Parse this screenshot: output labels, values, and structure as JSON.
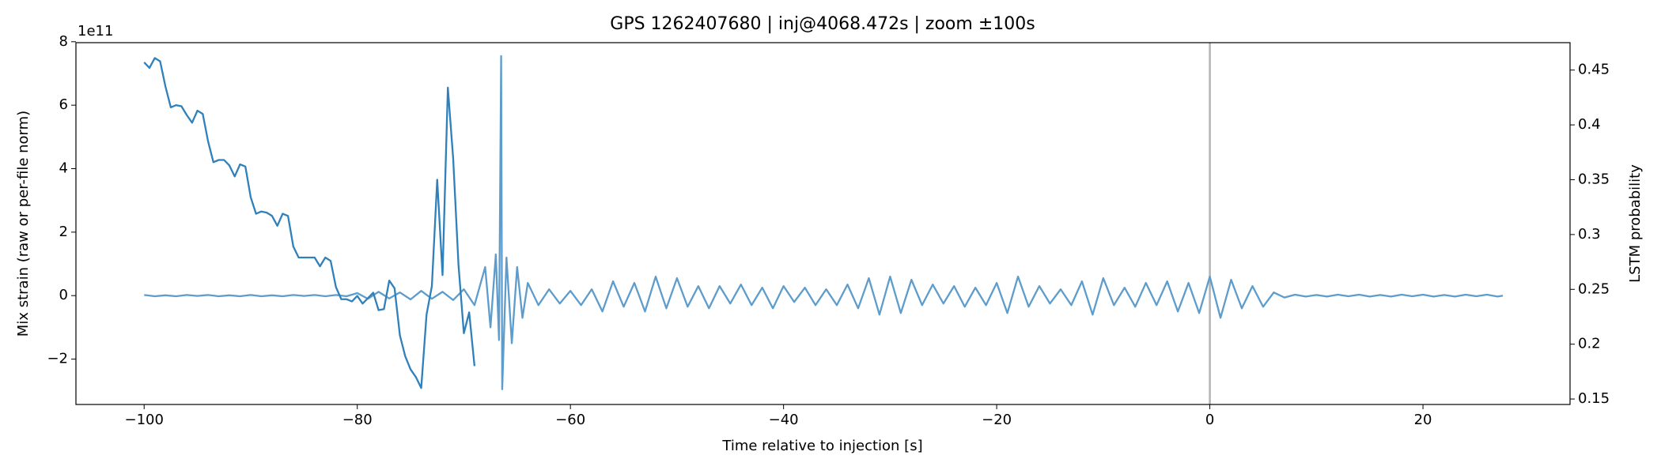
{
  "chart_data": {
    "type": "line",
    "title": "GPS 1262407680 | inj@4068.472s | zoom ±100s",
    "xlabel": "Time relative to injection [s]",
    "ylabel": "Mix strain (raw or per-file norm)",
    "y2label": "LSTM probability",
    "y_offset_label": "1e11",
    "xlim": [
      -106.4,
      33.8
    ],
    "xticks": [
      {
        "value": -100,
        "label": "−100"
      },
      {
        "value": -80,
        "label": "−80"
      },
      {
        "value": -60,
        "label": "−60"
      },
      {
        "value": -40,
        "label": "−40"
      },
      {
        "value": -20,
        "label": "−20"
      },
      0,
      20
    ],
    "ylim": [
      -3.43,
      7.97
    ],
    "yticks": [
      {
        "value": -2,
        "label": "−2"
      },
      0,
      2,
      4,
      6,
      8
    ],
    "y2lim": [
      0.145,
      0.475
    ],
    "y2ticks": [
      0.15,
      0.2,
      0.25,
      0.3,
      0.35,
      0.4,
      0.45
    ],
    "vline_x": 0,
    "vline_color": "#b3b3b3",
    "series": [
      {
        "color": "#5d9ccb",
        "axis": "y",
        "x": [
          -100,
          -99,
          -98,
          -97,
          -96,
          -95,
          -94,
          -93,
          -92,
          -91,
          -90,
          -89,
          -88,
          -87,
          -86,
          -85,
          -84,
          -83,
          -82,
          -81,
          -80,
          -79,
          -78,
          -77,
          -76,
          -75,
          -74,
          -73,
          -72,
          -71,
          -70,
          -69,
          -68,
          -67.5,
          -67,
          -66.7,
          -66.5,
          -66.4,
          -66,
          -65.5,
          -65,
          -64.5,
          -64,
          -63,
          -62,
          -61,
          -60,
          -59,
          -58,
          -57,
          -56,
          -55,
          -54,
          -53,
          -52,
          -51,
          -50,
          -49,
          -48,
          -47,
          -46,
          -45,
          -44,
          -43,
          -42,
          -41,
          -40,
          -39,
          -38,
          -37,
          -36,
          -35,
          -34,
          -33,
          -32,
          -31,
          -30,
          -29,
          -28,
          -27,
          -26,
          -25,
          -24,
          -23,
          -22,
          -21,
          -20,
          -19,
          -18,
          -17,
          -16,
          -15,
          -14,
          -13,
          -12,
          -11,
          -10,
          -9,
          -8,
          -7,
          -6,
          -5,
          -4,
          -3,
          -2,
          -1,
          0,
          1,
          2,
          3,
          4,
          5,
          6,
          7,
          8,
          9,
          10,
          11,
          12,
          13,
          14,
          15,
          16,
          17,
          18,
          19,
          20,
          21,
          22,
          23,
          24,
          25,
          26,
          27,
          27.5
        ],
        "values": [
          0.02,
          -0.02,
          0.01,
          -0.02,
          0.02,
          -0.01,
          0.02,
          -0.02,
          0.01,
          -0.02,
          0.02,
          -0.02,
          0.01,
          -0.02,
          0.02,
          -0.01,
          0.02,
          -0.02,
          0.02,
          -0.02,
          0.08,
          -0.1,
          0.12,
          -0.09,
          0.1,
          -0.12,
          0.15,
          -0.1,
          0.12,
          -0.14,
          0.2,
          -0.3,
          0.9,
          -1.0,
          1.3,
          -1.4,
          7.55,
          -2.95,
          1.2,
          -1.5,
          0.9,
          -0.7,
          0.4,
          -0.3,
          0.2,
          -0.25,
          0.15,
          -0.3,
          0.2,
          -0.5,
          0.45,
          -0.35,
          0.4,
          -0.5,
          0.6,
          -0.4,
          0.55,
          -0.35,
          0.3,
          -0.4,
          0.3,
          -0.25,
          0.35,
          -0.3,
          0.25,
          -0.4,
          0.3,
          -0.2,
          0.25,
          -0.3,
          0.2,
          -0.3,
          0.35,
          -0.4,
          0.55,
          -0.6,
          0.6,
          -0.55,
          0.5,
          -0.3,
          0.35,
          -0.25,
          0.3,
          -0.35,
          0.25,
          -0.3,
          0.4,
          -0.55,
          0.6,
          -0.35,
          0.3,
          -0.25,
          0.2,
          -0.3,
          0.45,
          -0.6,
          0.55,
          -0.3,
          0.25,
          -0.35,
          0.4,
          -0.3,
          0.45,
          -0.5,
          0.4,
          -0.55,
          0.6,
          -0.7,
          0.5,
          -0.4,
          0.3,
          -0.35,
          0.1,
          -0.06,
          0.03,
          -0.03,
          0.02,
          -0.03,
          0.03,
          -0.02,
          0.03,
          -0.03,
          0.02,
          -0.03,
          0.03,
          -0.02,
          0.03,
          -0.03,
          0.02,
          -0.03,
          0.03,
          -0.02,
          0.03,
          -0.03,
          0
        ]
      },
      {
        "color": "#2f80bb",
        "axis": "y2",
        "x": [
          -100,
          -99.5,
          -99,
          -98.5,
          -98,
          -97.5,
          -97,
          -96.5,
          -96,
          -95.5,
          -95,
          -94.5,
          -94,
          -93.5,
          -93,
          -92.5,
          -92,
          -91.5,
          -91,
          -90.5,
          -90,
          -89.5,
          -89,
          -88.5,
          -88,
          -87.5,
          -87,
          -86.5,
          -86,
          -85.5,
          -85,
          -84.5,
          -84,
          -83.5,
          -83,
          -82.5,
          -82,
          -81.5,
          -81,
          -80.5,
          -80,
          -79.5,
          -79,
          -78.5,
          -78,
          -77.5,
          -77,
          -76.5,
          -76,
          -75.5,
          -75,
          -74.5,
          -74,
          -73.5,
          -73,
          -72.5,
          -72,
          -71.5,
          -71,
          -70.5,
          -70,
          -69.5,
          -69
        ],
        "values": [
          0.457,
          0.452,
          0.461,
          0.458,
          0.435,
          0.416,
          0.418,
          0.417,
          0.409,
          0.402,
          0.413,
          0.41,
          0.385,
          0.366,
          0.368,
          0.368,
          0.363,
          0.353,
          0.364,
          0.362,
          0.334,
          0.319,
          0.321,
          0.32,
          0.317,
          0.308,
          0.319,
          0.317,
          0.289,
          0.279,
          0.279,
          0.279,
          0.279,
          0.271,
          0.279,
          0.276,
          0.252,
          0.241,
          0.241,
          0.239,
          0.244,
          0.237,
          0.242,
          0.247,
          0.231,
          0.232,
          0.258,
          0.251,
          0.208,
          0.189,
          0.177,
          0.17,
          0.16,
          0.227,
          0.253,
          0.35,
          0.263,
          0.434,
          0.369,
          0.272,
          0.21,
          0.229,
          0.18
        ]
      }
    ]
  }
}
